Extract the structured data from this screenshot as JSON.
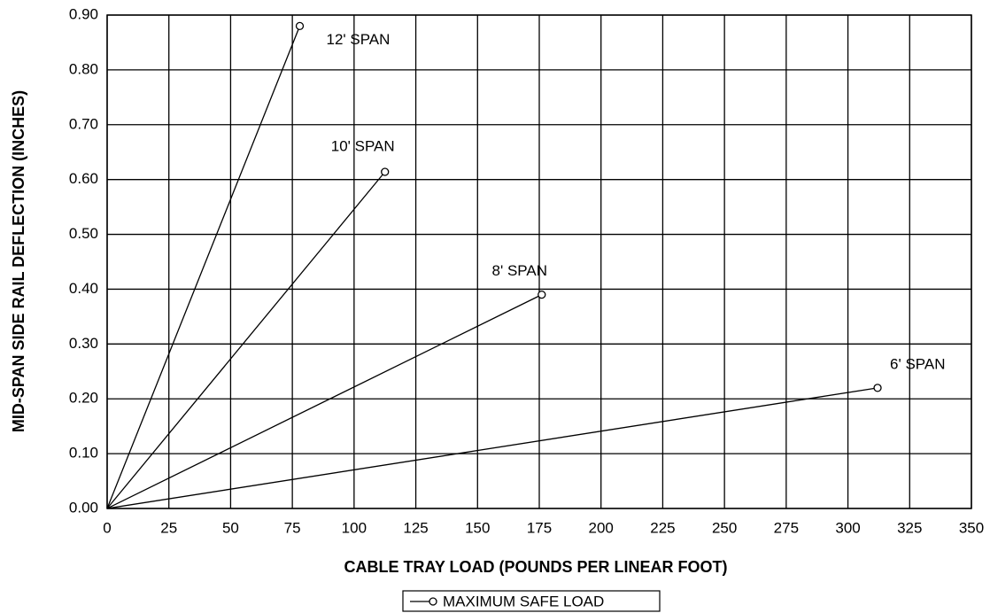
{
  "chart_data": {
    "type": "line",
    "xlabel": "CABLE TRAY LOAD (POUNDS PER LINEAR FOOT)",
    "ylabel": "MID-SPAN SIDE RAIL DEFLECTION (INCHES)",
    "legend_label": "MAXIMUM SAFE LOAD",
    "series": [
      {
        "name": "12' SPAN",
        "color": "#000000",
        "x": [
          0,
          78
        ],
        "values": [
          0,
          0.88
        ]
      },
      {
        "name": "10' SPAN",
        "color": "#000000",
        "x": [
          0,
          112.5
        ],
        "values": [
          0,
          0.614
        ]
      },
      {
        "name": "8' SPAN",
        "color": "#000000",
        "x": [
          0,
          176
        ],
        "values": [
          0,
          0.39
        ]
      },
      {
        "name": "6' SPAN",
        "color": "#000000",
        "x": [
          0,
          312
        ],
        "values": [
          0,
          0.22
        ]
      }
    ],
    "xlim": [
      0,
      350
    ],
    "xticks": [
      0,
      25,
      50,
      75,
      100,
      125,
      150,
      175,
      200,
      225,
      250,
      275,
      300,
      325,
      350
    ],
    "ylim": [
      0,
      0.9
    ],
    "yticks": [
      {
        "value": 0,
        "label": "0.00"
      },
      {
        "value": 0.1,
        "label": "0.10"
      },
      {
        "value": 0.2,
        "label": "0.20"
      },
      {
        "value": 0.3,
        "label": "0.30"
      },
      {
        "value": 0.4,
        "label": "0.40"
      },
      {
        "value": 0.5,
        "label": "0.50"
      },
      {
        "value": 0.6,
        "label": "0.60"
      },
      {
        "value": 0.7,
        "label": "0.70"
      },
      {
        "value": 0.8,
        "label": "0.80"
      },
      {
        "value": 0.9,
        "label": "0.90"
      }
    ],
    "grid": true
  }
}
